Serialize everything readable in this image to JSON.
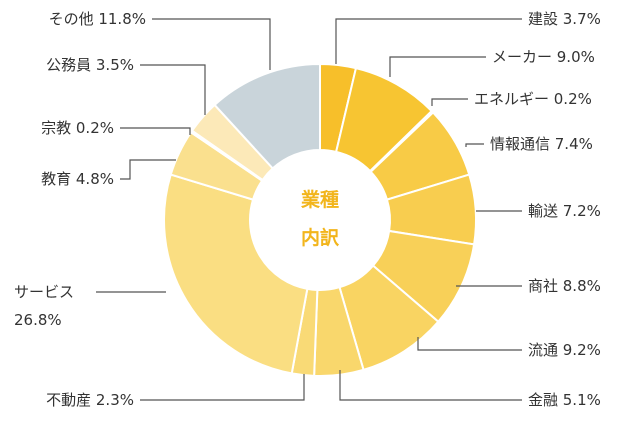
{
  "chart_data": {
    "type": "pie",
    "subtype": "donut",
    "center_label": [
      "業種",
      "内訳"
    ],
    "grid": false,
    "legend": "none",
    "slices": [
      {
        "name": "建設",
        "label": "建設 3.7%",
        "value": 3.7,
        "color": "#f7bf2a"
      },
      {
        "name": "メーカー",
        "label": "メーカー 9.0%",
        "value": 9.0,
        "color": "#f7c532"
      },
      {
        "name": "エネルギー",
        "label": "エネルギー 0.2%",
        "value": 0.2,
        "color": "#f7c93e"
      },
      {
        "name": "情報通信",
        "label": "情報通信 7.4%",
        "value": 7.4,
        "color": "#f8cb46"
      },
      {
        "name": "輸送",
        "label": "輸送 7.2%",
        "value": 7.2,
        "color": "#f8cd4f"
      },
      {
        "name": "商社",
        "label": "商社 8.8%",
        "value": 8.8,
        "color": "#f8d058"
      },
      {
        "name": "流通",
        "label": "流通 9.2%",
        "value": 9.2,
        "color": "#f9d462"
      },
      {
        "name": "金融",
        "label": "金融 5.1%",
        "value": 5.1,
        "color": "#f9d76c"
      },
      {
        "name": "不動産",
        "label": "不動産 2.3%",
        "value": 2.3,
        "color": "#f9da76"
      },
      {
        "name": "サービス",
        "label": [
          "サービス",
          "26.8%"
        ],
        "value": 26.8,
        "color": "#fade82"
      },
      {
        "name": "教育",
        "label": "教育 4.8%",
        "value": 4.8,
        "color": "#fae08e"
      },
      {
        "name": "宗教",
        "label": "宗教 0.2%",
        "value": 0.2,
        "color": "#fbe39a"
      },
      {
        "name": "公務員",
        "label": "公務員 3.5%",
        "value": 3.5,
        "color": "#fce9b8"
      },
      {
        "name": "その他",
        "label": "その他 11.8%",
        "value": 11.8,
        "color": "#c9d4da"
      }
    ]
  }
}
